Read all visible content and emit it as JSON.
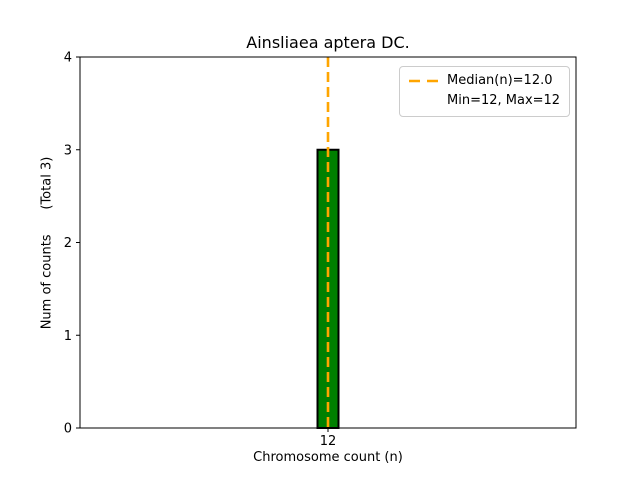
{
  "chart_data": {
    "type": "bar",
    "title": "Ainsliaea aptera DC.",
    "xlabel": "Chromosome count (n)",
    "ylabel": "Num of counts      (Total 3)",
    "categories": [
      "12"
    ],
    "values": [
      3
    ],
    "ylim": [
      0,
      4
    ],
    "yticks": [
      0,
      1,
      2,
      3,
      4
    ],
    "median": 12.0,
    "min": 12,
    "max": 12,
    "total": 3,
    "grid": false,
    "legend": {
      "position": "upper right",
      "entries": [
        "Median(n)=12.0",
        "Min=12, Max=12"
      ]
    },
    "colors": {
      "bar_fill": "#008000",
      "bar_edge": "#000000",
      "median_line": "#FFA500",
      "spine": "#000000",
      "legend_border": "#cccccc"
    }
  }
}
